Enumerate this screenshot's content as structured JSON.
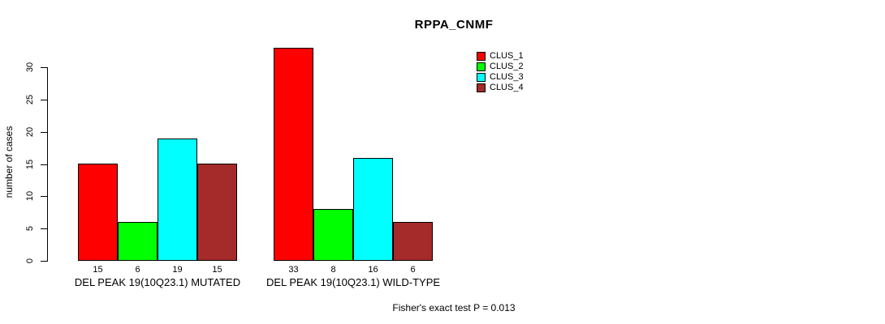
{
  "figure": {
    "title": "RPPA_CNMF",
    "footnote": "Fisher's exact test P = 0.013"
  },
  "chart_data": {
    "type": "bar",
    "title": "RPPA_CNMF",
    "xlabel": "",
    "ylabel": "number of cases",
    "ylim": [
      0,
      33
    ],
    "yticks": [
      0,
      5,
      10,
      15,
      20,
      25,
      30
    ],
    "grid": false,
    "legend_position": "top-right-inside",
    "categories": [
      "DEL PEAK 19(10Q23.1) MUTATED",
      "DEL PEAK 19(10Q23.1) WILD-TYPE"
    ],
    "series": [
      {
        "name": "CLUS_1",
        "color": "#ff0000",
        "values": [
          15,
          33
        ]
      },
      {
        "name": "CLUS_2",
        "color": "#00ff00",
        "values": [
          6,
          8
        ]
      },
      {
        "name": "CLUS_3",
        "color": "#00ffff",
        "values": [
          19,
          16
        ]
      },
      {
        "name": "CLUS_4",
        "color": "#a52a2a",
        "values": [
          15,
          6
        ]
      }
    ],
    "bar_value_labels": [
      [
        15,
        6,
        19,
        15
      ],
      [
        33,
        8,
        16,
        6
      ]
    ],
    "annotation": "Fisher's exact test P = 0.013",
    "axis_color": "#000000",
    "bar_border_color": "#000000"
  }
}
